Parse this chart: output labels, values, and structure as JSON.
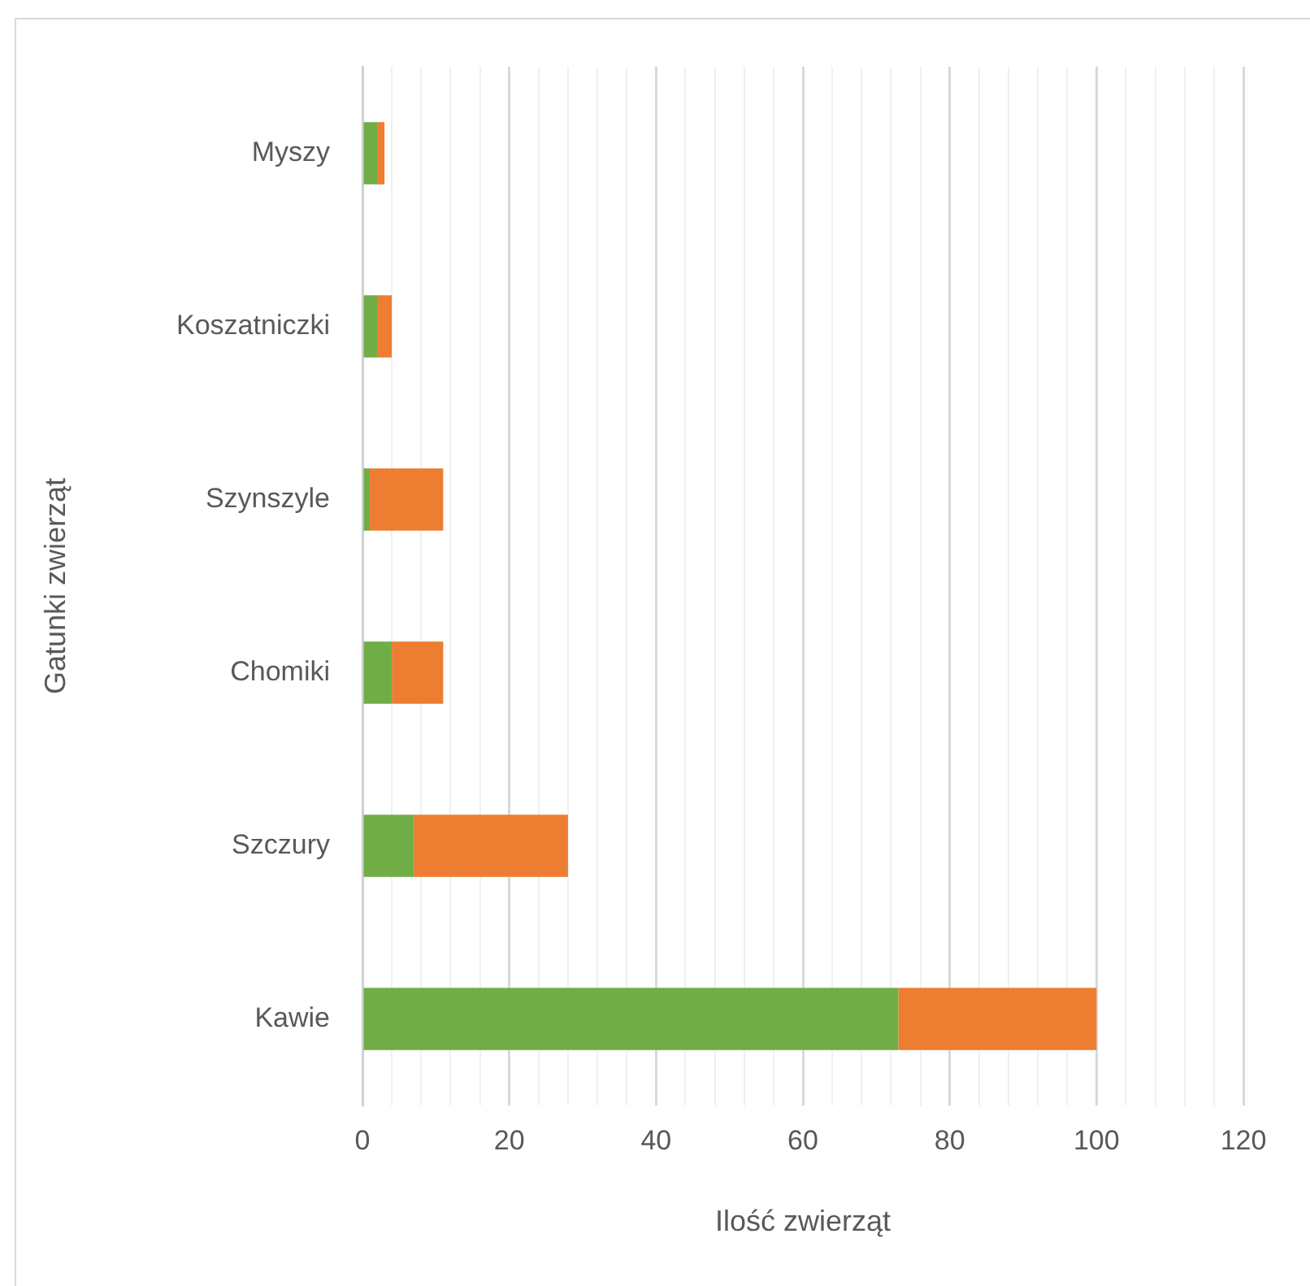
{
  "chart_data": {
    "type": "bar",
    "orientation": "horizontal",
    "stacked": true,
    "xlabel": "Ilość zwierząt",
    "ylabel": "Gatunki zwierząt",
    "categories": [
      "Myszy",
      "Koszatniczki",
      "Szynszyle",
      "Chomiki",
      "Szczury",
      "Kawie"
    ],
    "series": [
      {
        "color": "#70ad47",
        "values": [
          2,
          2,
          1,
          4,
          7,
          73
        ]
      },
      {
        "color": "#ed7d31",
        "values": [
          1,
          2,
          10,
          7,
          21,
          27
        ]
      }
    ],
    "xlim": [
      0,
      120
    ],
    "xticks": [
      0,
      {
        "value": 4,
        "label": null
      },
      {
        "value": 8,
        "label": null
      },
      {
        "value": 12,
        "label": null
      },
      {
        "value": 16,
        "label": null
      },
      20,
      {
        "value": 24,
        "label": null
      },
      {
        "value": 28,
        "label": null
      },
      {
        "value": 32,
        "label": null
      },
      {
        "value": 36,
        "label": null
      },
      40,
      {
        "value": 44,
        "label": null
      },
      {
        "value": 48,
        "label": null
      },
      {
        "value": 52,
        "label": null
      },
      {
        "value": 56,
        "label": null
      },
      60,
      {
        "value": 64,
        "label": null
      },
      {
        "value": 68,
        "label": null
      },
      {
        "value": 72,
        "label": null
      },
      {
        "value": 76,
        "label": null
      },
      80,
      {
        "value": 84,
        "label": null
      },
      {
        "value": 88,
        "label": null
      },
      {
        "value": 92,
        "label": null
      },
      {
        "value": 96,
        "label": null
      },
      100,
      {
        "value": 104,
        "label": null
      },
      {
        "value": 108,
        "label": null
      },
      {
        "value": 112,
        "label": null
      },
      {
        "value": 116,
        "label": null
      },
      120
    ],
    "grid": "x"
  }
}
